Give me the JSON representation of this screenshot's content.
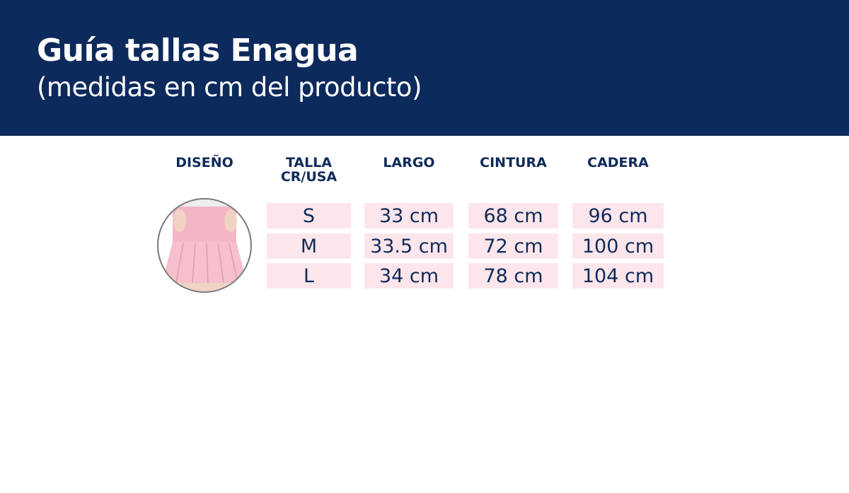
{
  "header": {
    "title": "Guía tallas Enagua",
    "subtitle": "(medidas en cm del producto)"
  },
  "table": {
    "headers": [
      "DISEÑO",
      "TALLA\nCR/USA",
      "LARGO",
      "CINTURA",
      "CADERA"
    ],
    "rows": [
      {
        "talla": "S",
        "largo": "33 cm",
        "cintura": "68 cm",
        "cadera": "96 cm"
      },
      {
        "talla": "M",
        "largo": "33.5 cm",
        "cintura": "72 cm",
        "cadera": "100 cm"
      },
      {
        "talla": "L",
        "largo": "34 cm",
        "cintura": "78 cm",
        "cadera": "104 cm"
      }
    ]
  },
  "colors": {
    "header_bg": "#0d2a5c",
    "cell_bg": "#fde6eb",
    "text": "#0f2a5a",
    "skirt": "#f4b6c4"
  }
}
